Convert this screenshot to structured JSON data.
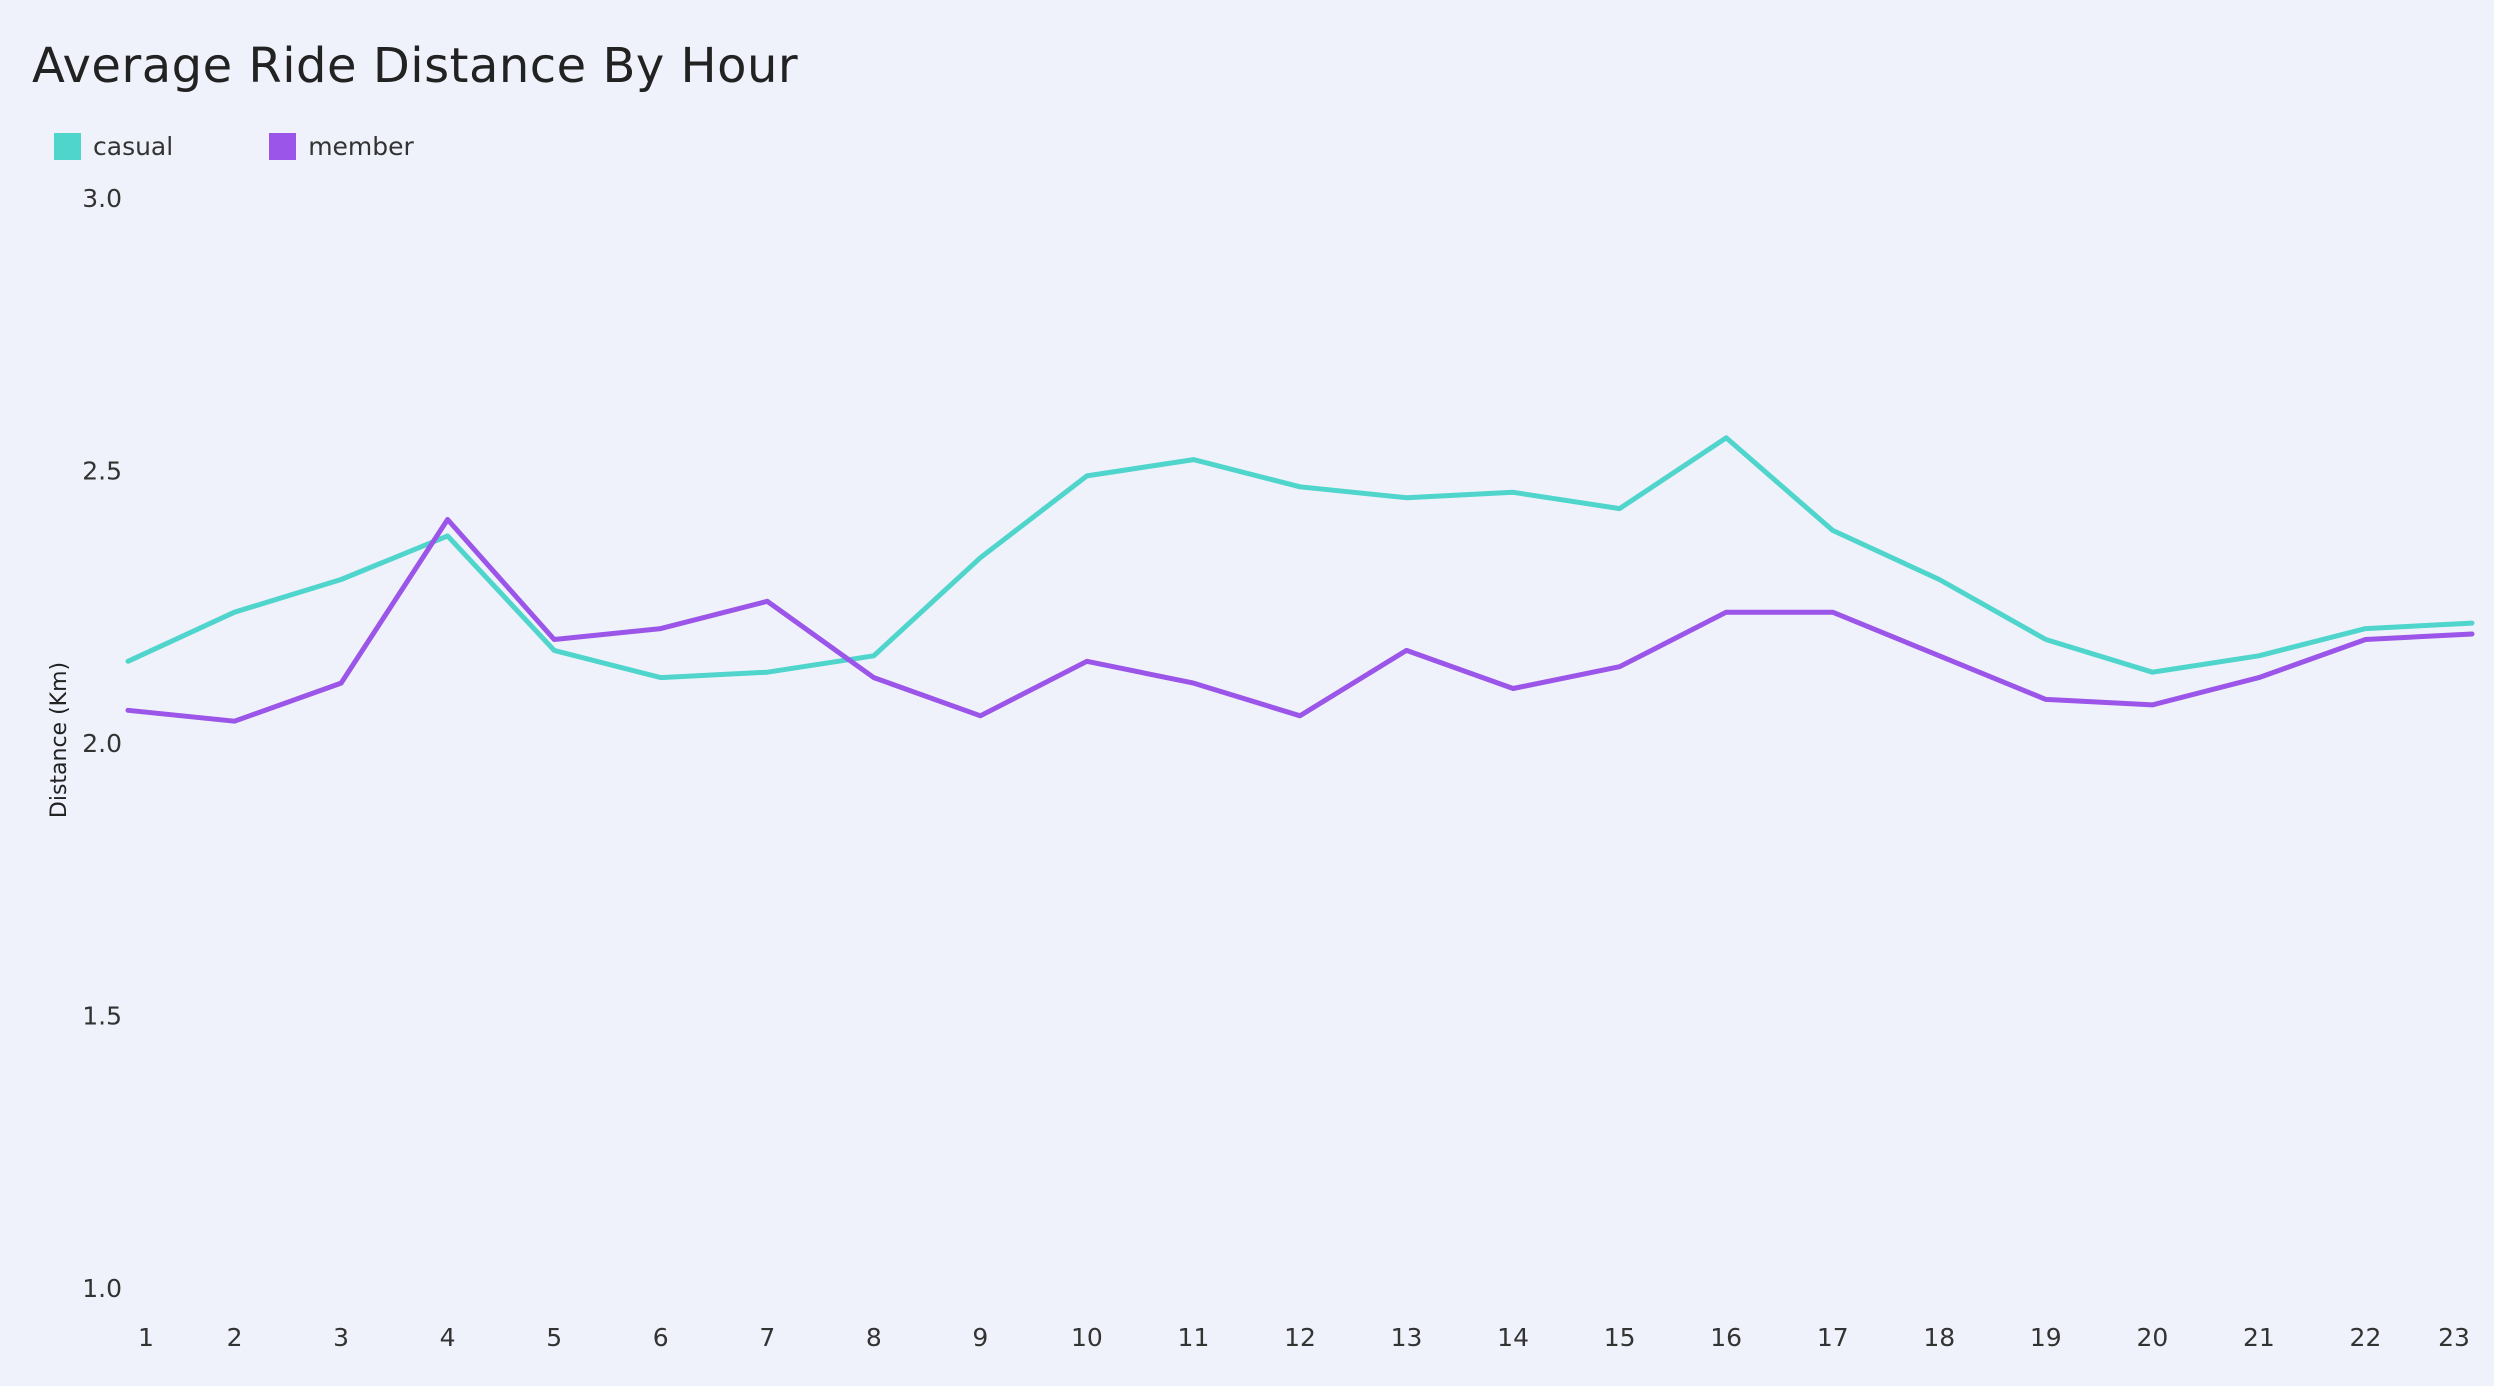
{
  "chart_data": {
    "type": "line",
    "title": "Average Ride Distance By Hour",
    "xlabel": "",
    "ylabel": "Distance (Km)",
    "x": [
      1,
      2,
      3,
      4,
      5,
      6,
      7,
      8,
      9,
      10,
      11,
      12,
      13,
      14,
      15,
      16,
      17,
      18,
      19,
      20,
      21,
      22,
      23
    ],
    "ylim": [
      1.0,
      3.0
    ],
    "yticks": [
      "1.0",
      "1.5",
      "2.0",
      "2.5",
      "3.0"
    ],
    "grid": false,
    "legend_position": "top-left",
    "series": [
      {
        "name": "casual",
        "color": "#4fd5cc",
        "values": [
          2.15,
          2.24,
          2.3,
          2.38,
          2.17,
          2.12,
          2.13,
          2.16,
          2.34,
          2.49,
          2.52,
          2.47,
          2.45,
          2.46,
          2.43,
          2.56,
          2.39,
          2.3,
          2.19,
          2.13,
          2.16,
          2.21,
          2.22
        ]
      },
      {
        "name": "member",
        "color": "#9b55e8",
        "values": [
          2.06,
          2.04,
          2.11,
          2.41,
          2.19,
          2.21,
          2.26,
          2.12,
          2.05,
          2.15,
          2.11,
          2.05,
          2.17,
          2.1,
          2.14,
          2.24,
          2.24,
          2.16,
          2.08,
          2.07,
          2.12,
          2.19,
          2.2
        ]
      }
    ]
  }
}
